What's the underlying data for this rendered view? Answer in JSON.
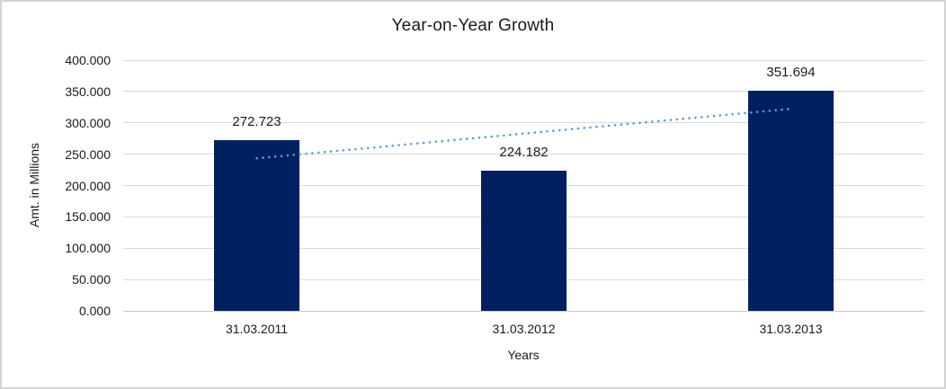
{
  "chart_data": {
    "type": "bar",
    "title": "Year-on-Year Growth",
    "xlabel": "Years",
    "ylabel": "Amt. in Millions",
    "categories": [
      "31.03.2011",
      "31.03.2012",
      "31.03.2013"
    ],
    "values": [
      272.723,
      224.182,
      351.694
    ],
    "value_labels": [
      "272.723",
      "224.182",
      "351.694"
    ],
    "ylim": [
      0,
      400
    ],
    "ytick_step": 50,
    "ytick_labels": [
      "0.000",
      "50.000",
      "100.000",
      "150.000",
      "200.000",
      "250.000",
      "300.000",
      "350.000",
      "400.000"
    ],
    "grid": true,
    "legend": "none",
    "trendline": {
      "type": "linear",
      "style": "dotted"
    },
    "colors": {
      "bar": "#002060",
      "trendline": "#5b9bd5",
      "gridline": "#d9d9d9",
      "baseline": "#c9c9c9",
      "text": "#1a1a1a",
      "frame_border": "#d3d3d3"
    }
  }
}
